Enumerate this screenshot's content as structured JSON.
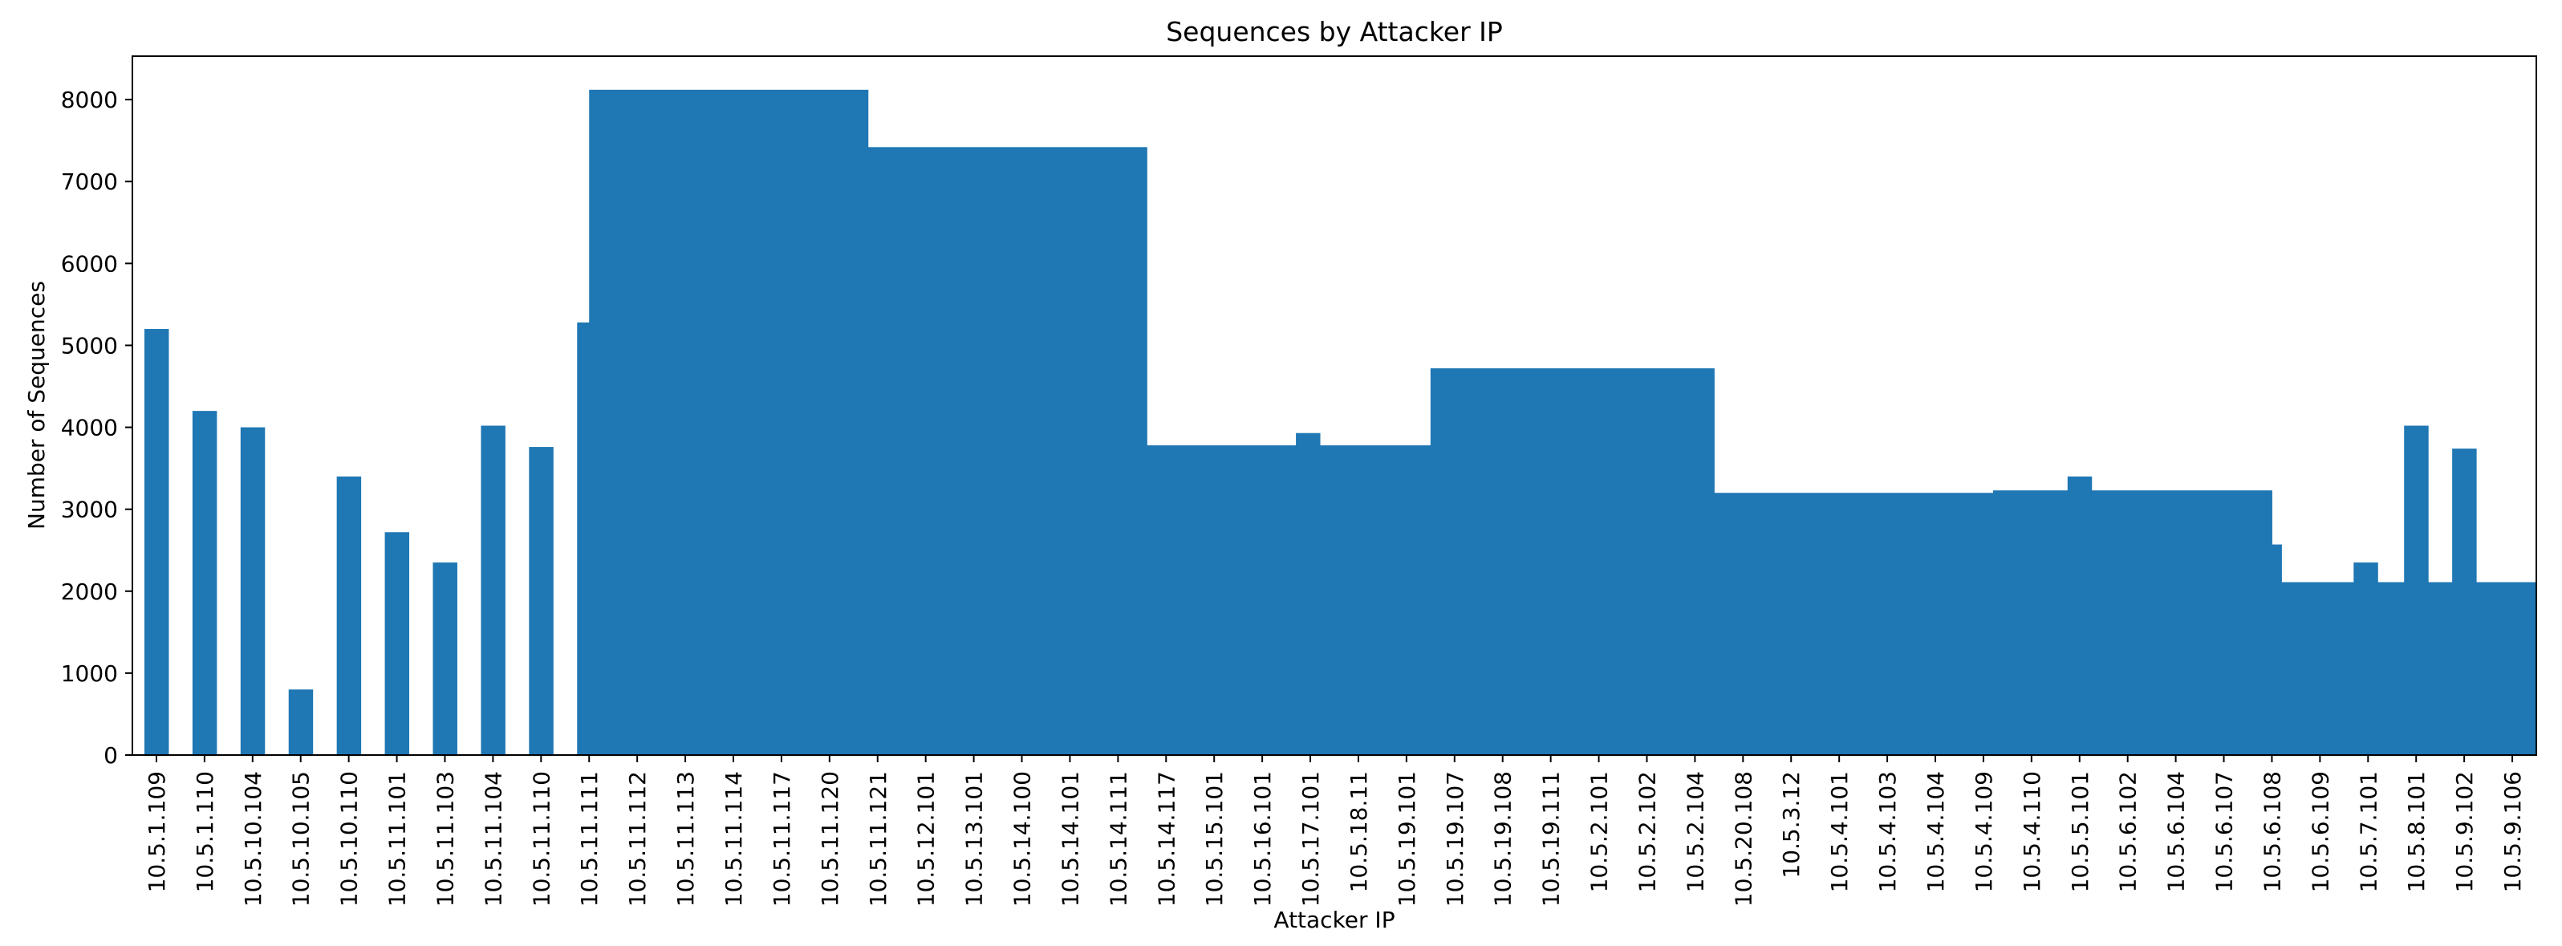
{
  "chart_data": {
    "type": "bar",
    "title": "Sequences by Attacker IP",
    "xlabel": "Attacker IP",
    "ylabel": "Number of Sequences",
    "ylim": [
      0,
      8530
    ],
    "yticks": [
      0,
      1000,
      2000,
      3000,
      4000,
      5000,
      6000,
      7000,
      8000
    ],
    "grid": false,
    "legend": "none",
    "bar_color": "#1f77b4",
    "categories": [
      "10.5.1.109",
      "10.5.1.110",
      "10.5.10.104",
      "10.5.10.105",
      "10.5.10.110",
      "10.5.11.101",
      "10.5.11.103",
      "10.5.11.104",
      "10.5.11.110",
      "10.5.11.111",
      "10.5.11.112",
      "10.5.11.113",
      "10.5.11.114",
      "10.5.11.117",
      "10.5.11.120",
      "10.5.11.121",
      "10.5.12.101",
      "10.5.13.101",
      "10.5.14.100",
      "10.5.14.101",
      "10.5.14.111",
      "10.5.14.117",
      "10.5.15.101",
      "10.5.16.101",
      "10.5.17.101",
      "10.5.18.11",
      "10.5.19.101",
      "10.5.19.107",
      "10.5.19.108",
      "10.5.19.111",
      "10.5.2.101",
      "10.5.2.102",
      "10.5.2.104",
      "10.5.20.108",
      "10.5.3.12",
      "10.5.4.101",
      "10.5.4.103",
      "10.5.4.104",
      "10.5.4.109",
      "10.5.4.110",
      "10.5.5.101",
      "10.5.6.102",
      "10.5.6.104",
      "10.5.6.107",
      "10.5.6.108",
      "10.5.6.109",
      "10.5.7.101",
      "10.5.8.101",
      "10.5.9.102",
      "10.5.9.106"
    ],
    "segments": [
      {
        "x0": -0.25,
        "x1": 0.25,
        "value": 5200
      },
      {
        "x0": 0.75,
        "x1": 1.25,
        "value": 4200
      },
      {
        "x0": 1.75,
        "x1": 2.25,
        "value": 4000
      },
      {
        "x0": 2.75,
        "x1": 3.25,
        "value": 800
      },
      {
        "x0": 3.75,
        "x1": 4.25,
        "value": 3400
      },
      {
        "x0": 4.75,
        "x1": 5.25,
        "value": 2720
      },
      {
        "x0": 5.75,
        "x1": 6.25,
        "value": 2350
      },
      {
        "x0": 6.75,
        "x1": 7.25,
        "value": 4020
      },
      {
        "x0": 7.75,
        "x1": 8.25,
        "value": 3760
      },
      {
        "x0": 8.75,
        "x1": 9.0,
        "value": 5280
      },
      {
        "x0": 9.0,
        "x1": 14.8,
        "value": 8120
      },
      {
        "x0": 14.8,
        "x1": 20.6,
        "value": 7420
      },
      {
        "x0": 20.6,
        "x1": 23.7,
        "value": 3780
      },
      {
        "x0": 23.7,
        "x1": 24.2,
        "value": 3930
      },
      {
        "x0": 24.2,
        "x1": 26.5,
        "value": 3780
      },
      {
        "x0": 26.5,
        "x1": 32.4,
        "value": 4720
      },
      {
        "x0": 32.4,
        "x1": 38.2,
        "value": 3200
      },
      {
        "x0": 38.2,
        "x1": 39.75,
        "value": 3230
      },
      {
        "x0": 39.75,
        "x1": 40.25,
        "value": 3400
      },
      {
        "x0": 40.25,
        "x1": 44.0,
        "value": 3230
      },
      {
        "x0": 44.0,
        "x1": 44.2,
        "value": 2570
      },
      {
        "x0": 44.2,
        "x1": 45.7,
        "value": 2110
      },
      {
        "x0": 45.7,
        "x1": 46.2,
        "value": 2350
      },
      {
        "x0": 46.2,
        "x1": 46.75,
        "value": 2110
      },
      {
        "x0": 46.75,
        "x1": 47.25,
        "value": 4020
      },
      {
        "x0": 47.25,
        "x1": 47.75,
        "value": 2110
      },
      {
        "x0": 47.75,
        "x1": 48.25,
        "value": 3740
      },
      {
        "x0": 48.25,
        "x1": 49.5,
        "value": 2110
      }
    ]
  }
}
